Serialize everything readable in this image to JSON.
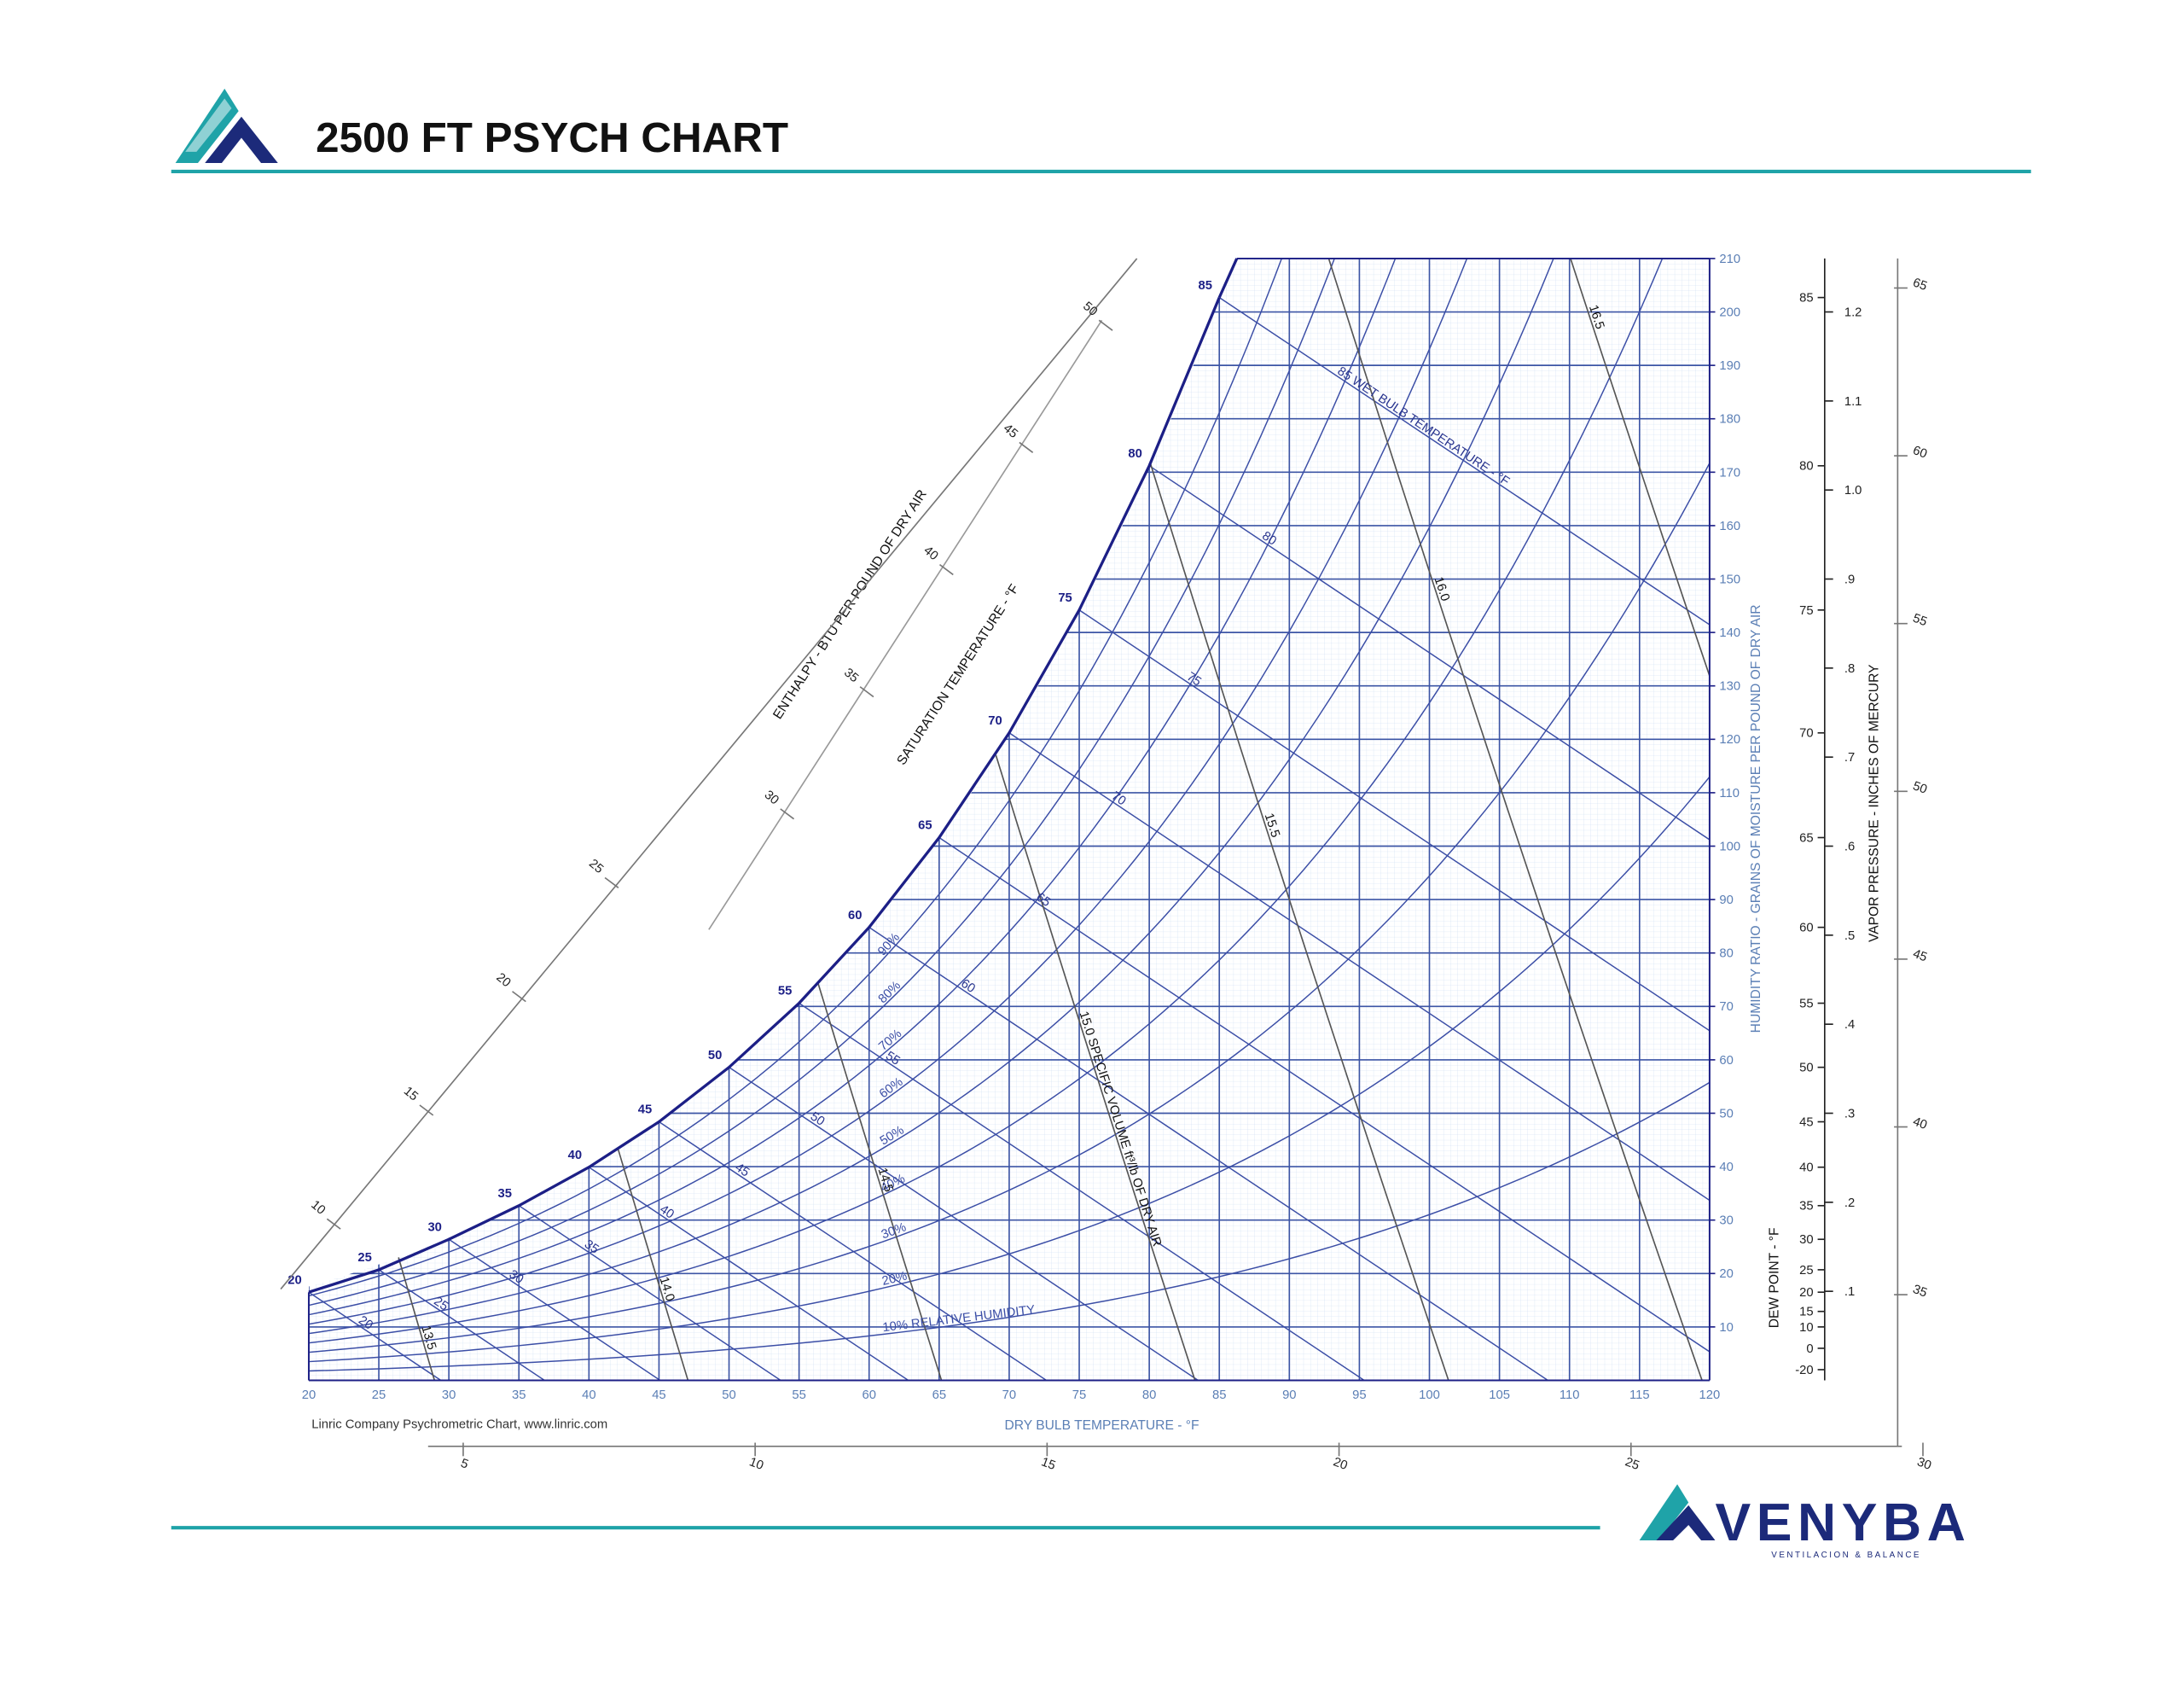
{
  "header": {
    "title": "2500 FT PSYCH CHART"
  },
  "chart_data": {
    "type": "psychrometric",
    "xlabel": "DRY BULB TEMPERATURE - °F",
    "ylabel": "HUMIDITY RATIO - GRAINS OF MOISTURE PER POUND OF DRY AIR",
    "xlim": [
      20,
      120
    ],
    "xticks": [
      20,
      25,
      30,
      35,
      40,
      45,
      50,
      55,
      60,
      65,
      70,
      75,
      80,
      85,
      90,
      95,
      100,
      105,
      110,
      115,
      120
    ],
    "ylim": [
      0,
      210
    ],
    "yticks": [
      10,
      20,
      30,
      40,
      50,
      60,
      70,
      80,
      90,
      100,
      110,
      120,
      130,
      140,
      150,
      160,
      170,
      180,
      190,
      200,
      210
    ],
    "grid": true,
    "saturation": {
      "name": "SATURATION TEMPERATURE - °F",
      "color": "#1c1f86",
      "x": [
        20,
        25,
        30,
        35,
        40,
        45,
        50,
        55,
        60,
        65,
        70,
        75,
        80,
        85
      ],
      "values": [
        16.5,
        20.7,
        26.4,
        32.7,
        39.9,
        48.4,
        58.6,
        70.6,
        84.8,
        101.6,
        121.2,
        144.2,
        171.2,
        202.7
      ]
    },
    "relative_humidity": {
      "color": "#3b4ea6",
      "values": [
        10,
        20,
        30,
        40,
        50,
        60,
        70,
        80,
        90
      ],
      "value_labels": [
        "10% RELATIVE HUMIDITY",
        "20%",
        "30%",
        "40%",
        "50%",
        "60%",
        "70%",
        "80%",
        "90%"
      ]
    },
    "wet_bulb": {
      "color": "#3b4ea6",
      "values": [
        20,
        25,
        30,
        35,
        40,
        45,
        50,
        55,
        60,
        65,
        70,
        75,
        80,
        85
      ],
      "value_labels": [
        "20",
        "25",
        "30",
        "35",
        "40",
        "45",
        "50",
        "55",
        "60",
        "65",
        "70",
        "75",
        "80",
        "85 WET BULB TEMPERATURE - °F"
      ]
    },
    "specific_volume": {
      "color": "#555555",
      "values": [
        13.5,
        14,
        14.5,
        15,
        15.5,
        16,
        16.5
      ],
      "value_labels": [
        "13.5",
        "14.0",
        "14.5",
        "15.0 SPECIFIC VOLUME ft³/lb OF DRY AIR",
        "15.5",
        "16.0",
        "16.5"
      ]
    },
    "enthalpy": {
      "label": "ENTHALPY - BTU PER POUND OF DRY AIR",
      "scale_1": [
        10,
        15,
        20,
        25
      ],
      "scale_2": [
        30,
        35,
        40,
        45,
        50
      ],
      "scale_bottom": [
        5,
        10,
        15,
        20,
        25,
        30
      ],
      "scale_right": [
        35,
        40,
        45,
        50,
        55,
        60,
        65
      ]
    },
    "dew_point": {
      "label": "DEW POINT - °F",
      "ticks": [
        -20,
        0,
        10,
        15,
        20,
        25,
        30,
        35,
        40,
        45,
        50,
        55,
        60,
        65,
        70,
        75,
        80,
        85
      ],
      "humidity_ratio": [
        2.0,
        6.0,
        10.0,
        12.9,
        16.5,
        20.7,
        26.4,
        32.7,
        39.9,
        48.4,
        58.6,
        70.6,
        84.8,
        101.6,
        121.2,
        144.2,
        171.2,
        202.7
      ]
    },
    "vapor_pressure": {
      "label": "VAPOR PRESSURE - INCHES OF MERCURY",
      "lim": [
        0,
        1.26
      ],
      "ticks": [
        {
          "value": 0.1,
          "label": ".1"
        },
        {
          "value": 0.2,
          "label": ".2"
        },
        {
          "value": 0.3,
          "label": ".3"
        },
        {
          "value": 0.4,
          "label": ".4"
        },
        {
          "value": 0.5,
          "label": ".5"
        },
        {
          "value": 0.6,
          "label": ".6"
        },
        {
          "value": 0.7,
          "label": ".7"
        },
        {
          "value": 0.8,
          "label": ".8"
        },
        {
          "value": 0.9,
          "label": ".9"
        },
        {
          "value": 1,
          "label": "1.0"
        },
        1.1,
        1.2
      ]
    },
    "note": "Linric Company Psychrometric Chart, www.linric.com"
  },
  "footer": {
    "brand": "VENYBA",
    "tagline": "VENTILACION & BALANCE"
  }
}
